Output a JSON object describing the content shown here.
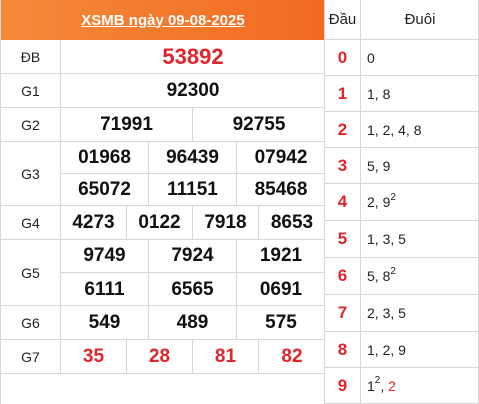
{
  "title": "XSMB ngày 09-08-2025",
  "prizes": {
    "db": {
      "label": "ĐB",
      "numbers": [
        "53892"
      ]
    },
    "g1": {
      "label": "G1",
      "numbers": [
        "92300"
      ]
    },
    "g2": {
      "label": "G2",
      "numbers": [
        "71991",
        "92755"
      ]
    },
    "g3": {
      "label": "G3",
      "numbers": [
        "01968",
        "96439",
        "07942",
        "65072",
        "11151",
        "85468"
      ]
    },
    "g4": {
      "label": "G4",
      "numbers": [
        "4273",
        "0122",
        "7918",
        "8653"
      ]
    },
    "g5": {
      "label": "G5",
      "numbers": [
        "9749",
        "7924",
        "1921",
        "6111",
        "6565",
        "0691"
      ]
    },
    "g6": {
      "label": "G6",
      "numbers": [
        "549",
        "489",
        "575"
      ]
    },
    "g7": {
      "label": "G7",
      "numbers": [
        "35",
        "28",
        "81",
        "82"
      ]
    }
  },
  "heads_table": {
    "col_head": "Đầu",
    "col_tail": "Đuôi",
    "rows": [
      {
        "head": "0",
        "tail": "0"
      },
      {
        "head": "1",
        "tail": "1, 8"
      },
      {
        "head": "2",
        "tail": "1, 2, 4, 8"
      },
      {
        "head": "3",
        "tail": "5, 9"
      },
      {
        "head": "4",
        "tail_a": "2, 9",
        "tail_sup": "2"
      },
      {
        "head": "5",
        "tail": "1, 3, 5"
      },
      {
        "head": "6",
        "tail_a": "5, 8",
        "tail_sup": "2"
      },
      {
        "head": "7",
        "tail": "2, 3, 5"
      },
      {
        "head": "8",
        "tail": "1, 2, 9"
      },
      {
        "head": "9",
        "tail_a": "1",
        "tail_sup": "2",
        "tail_b": ", ",
        "tail_c": "2"
      }
    ]
  },
  "colors": {
    "header_bg": "#f26a1f",
    "accent_red": "#e0262c",
    "grid": "#d7d7d7"
  }
}
